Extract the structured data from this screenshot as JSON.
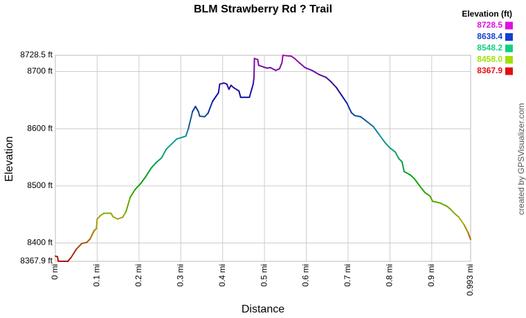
{
  "chart_data": {
    "type": "line",
    "title": "BLM Strawberry Rd ? Trail",
    "x_label": "Distance",
    "y_label": "Elevation",
    "credit": "created by GPSVisualizer.com",
    "legend_title": "Elevation (ft)",
    "color_scale": [
      {
        "value": 8728.5,
        "color": "#e010e0"
      },
      {
        "value": 8638.4,
        "color": "#1040d0"
      },
      {
        "value": 8548.2,
        "color": "#10d080"
      },
      {
        "value": 8458.0,
        "label": "8458.0",
        "color": "#a0e000"
      },
      {
        "value": 8367.9,
        "color": "#e01010"
      }
    ],
    "grid": true,
    "xlim": [
      0,
      0.993
    ],
    "ylim": [
      8367.9,
      8728.5
    ],
    "xticks": [
      {
        "value": 0,
        "label": "0 mi"
      },
      {
        "value": 0.1,
        "label": "0.1 mi"
      },
      {
        "value": 0.2,
        "label": "0.2 mi"
      },
      {
        "value": 0.3,
        "label": "0.3 mi"
      },
      {
        "value": 0.4,
        "label": "0.4 mi"
      },
      {
        "value": 0.5,
        "label": "0.5 mi"
      },
      {
        "value": 0.6,
        "label": "0.6 mi"
      },
      {
        "value": 0.7,
        "label": "0.7 mi"
      },
      {
        "value": 0.8,
        "label": "0.8 mi"
      },
      {
        "value": 0.9,
        "label": "0.9 mi"
      },
      {
        "value": 0.993,
        "label": "0.993 mi"
      }
    ],
    "yticks": [
      {
        "value": 8367.9,
        "label": "8367.9 ft"
      },
      {
        "value": 8400,
        "label": "8400 ft"
      },
      {
        "value": 8500,
        "label": "8500 ft"
      },
      {
        "value": 8600,
        "label": "8600 ft"
      },
      {
        "value": 8700,
        "label": "8700 ft"
      },
      {
        "value": 8728.5,
        "label": "8728.5 ft"
      }
    ],
    "x": [
      0,
      0.005,
      0.007,
      0.025,
      0.03,
      0.038,
      0.05,
      0.063,
      0.075,
      0.083,
      0.093,
      0.098,
      0.1,
      0.108,
      0.116,
      0.133,
      0.138,
      0.149,
      0.161,
      0.169,
      0.179,
      0.191,
      0.204,
      0.216,
      0.229,
      0.24,
      0.254,
      0.265,
      0.279,
      0.29,
      0.299,
      0.312,
      0.318,
      0.328,
      0.335,
      0.342,
      0.345,
      0.357,
      0.365,
      0.376,
      0.39,
      0.393,
      0.403,
      0.41,
      0.415,
      0.42,
      0.426,
      0.439,
      0.443,
      0.464,
      0.473,
      0.475,
      0.476,
      0.484,
      0.486,
      0.498,
      0.506,
      0.514,
      0.527,
      0.536,
      0.542,
      0.544,
      0.564,
      0.572,
      0.584,
      0.597,
      0.614,
      0.63,
      0.647,
      0.658,
      0.672,
      0.685,
      0.697,
      0.708,
      0.716,
      0.73,
      0.746,
      0.76,
      0.774,
      0.788,
      0.799,
      0.813,
      0.821,
      0.829,
      0.834,
      0.849,
      0.859,
      0.871,
      0.884,
      0.896,
      0.902,
      0.92,
      0.937,
      0.945,
      0.954,
      0.965,
      0.978,
      0.987,
      0.993
    ],
    "values": [
      8377,
      8376,
      8368,
      8367.9,
      8368,
      8375,
      8389,
      8399,
      8401,
      8407,
      8422,
      8425,
      8442,
      8448,
      8452,
      8452,
      8446,
      8442,
      8445,
      8455,
      8480,
      8494,
      8504,
      8516,
      8531,
      8540,
      8549,
      8564,
      8574,
      8582,
      8584,
      8587,
      8600,
      8630,
      8639,
      8630,
      8622,
      8621,
      8627,
      8648,
      8663,
      8678,
      8680,
      8678,
      8669,
      8676,
      8672,
      8666,
      8655,
      8655,
      8678,
      8690,
      8723,
      8721,
      8711,
      8708,
      8706,
      8707,
      8702,
      8705,
      8716,
      8728.5,
      8727,
      8723,
      8715,
      8707,
      8702,
      8695,
      8690,
      8683,
      8672,
      8658,
      8645,
      8628,
      8623,
      8621,
      8612,
      8604,
      8590,
      8576,
      8567,
      8559,
      8548,
      8542,
      8525,
      8519,
      8512,
      8500,
      8488,
      8482,
      8473,
      8470,
      8464,
      8459,
      8452,
      8445,
      8431,
      8418,
      8406
    ]
  }
}
